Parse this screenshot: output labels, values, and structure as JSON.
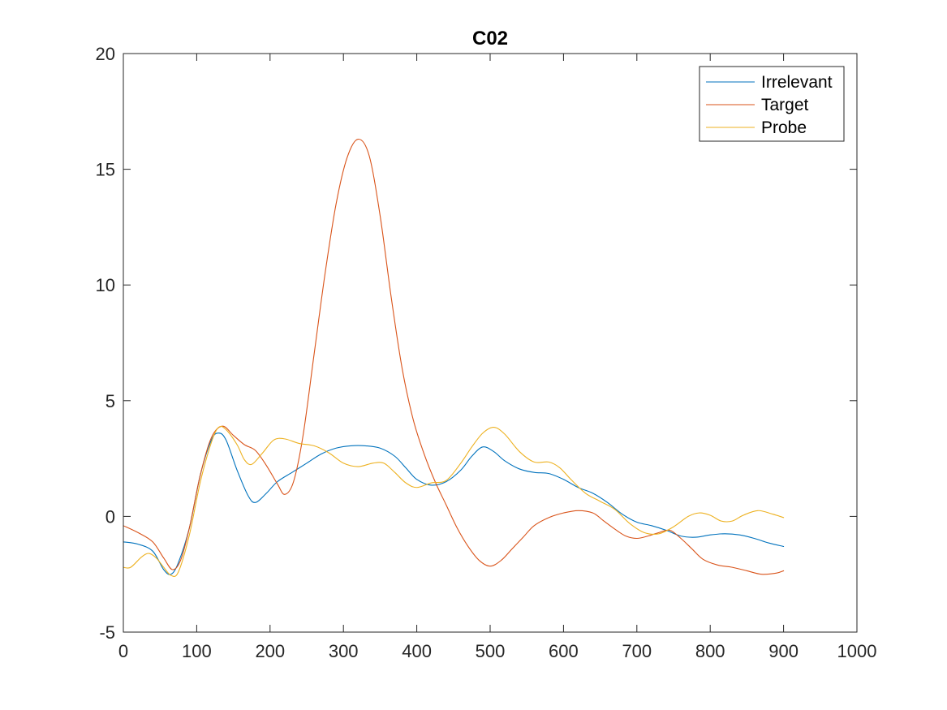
{
  "chart_data": {
    "type": "line",
    "title": "C02",
    "xlabel": "",
    "ylabel": "",
    "xlim": [
      0,
      1000
    ],
    "ylim": [
      -5,
      20
    ],
    "xticks": [
      0,
      100,
      200,
      300,
      400,
      500,
      600,
      700,
      800,
      900,
      1000
    ],
    "yticks": [
      -5,
      0,
      5,
      10,
      15,
      20
    ],
    "grid": false,
    "legend_position": "top-right",
    "series": [
      {
        "name": "Irrelevant",
        "color": "#0072BD",
        "points": [
          [
            0,
            -1.1
          ],
          [
            20,
            -1.2
          ],
          [
            40,
            -1.5
          ],
          [
            55,
            -2.3
          ],
          [
            65,
            -2.5
          ],
          [
            75,
            -2.0
          ],
          [
            90,
            -0.5
          ],
          [
            105,
            1.8
          ],
          [
            120,
            3.3
          ],
          [
            130,
            3.6
          ],
          [
            140,
            3.3
          ],
          [
            155,
            2.0
          ],
          [
            170,
            0.9
          ],
          [
            180,
            0.6
          ],
          [
            195,
            1.0
          ],
          [
            210,
            1.5
          ],
          [
            230,
            1.9
          ],
          [
            250,
            2.3
          ],
          [
            270,
            2.7
          ],
          [
            290,
            2.95
          ],
          [
            310,
            3.05
          ],
          [
            330,
            3.05
          ],
          [
            350,
            2.95
          ],
          [
            370,
            2.6
          ],
          [
            385,
            2.1
          ],
          [
            400,
            1.6
          ],
          [
            420,
            1.35
          ],
          [
            440,
            1.5
          ],
          [
            460,
            2.0
          ],
          [
            475,
            2.6
          ],
          [
            490,
            3.0
          ],
          [
            505,
            2.8
          ],
          [
            520,
            2.4
          ],
          [
            540,
            2.05
          ],
          [
            560,
            1.9
          ],
          [
            580,
            1.85
          ],
          [
            600,
            1.6
          ],
          [
            620,
            1.25
          ],
          [
            640,
            1.0
          ],
          [
            660,
            0.6
          ],
          [
            680,
            0.1
          ],
          [
            700,
            -0.25
          ],
          [
            720,
            -0.4
          ],
          [
            740,
            -0.6
          ],
          [
            760,
            -0.85
          ],
          [
            780,
            -0.9
          ],
          [
            800,
            -0.8
          ],
          [
            820,
            -0.75
          ],
          [
            840,
            -0.8
          ],
          [
            860,
            -0.95
          ],
          [
            880,
            -1.15
          ],
          [
            900,
            -1.3
          ]
        ]
      },
      {
        "name": "Target",
        "color": "#D95319",
        "points": [
          [
            0,
            -0.4
          ],
          [
            20,
            -0.7
          ],
          [
            40,
            -1.1
          ],
          [
            55,
            -1.8
          ],
          [
            67,
            -2.3
          ],
          [
            78,
            -1.9
          ],
          [
            90,
            -0.5
          ],
          [
            105,
            1.8
          ],
          [
            120,
            3.4
          ],
          [
            135,
            3.9
          ],
          [
            150,
            3.5
          ],
          [
            165,
            3.1
          ],
          [
            180,
            2.85
          ],
          [
            195,
            2.2
          ],
          [
            210,
            1.4
          ],
          [
            220,
            0.95
          ],
          [
            232,
            1.5
          ],
          [
            245,
            3.5
          ],
          [
            260,
            7.0
          ],
          [
            275,
            10.5
          ],
          [
            290,
            13.5
          ],
          [
            305,
            15.5
          ],
          [
            320,
            16.3
          ],
          [
            335,
            15.6
          ],
          [
            350,
            13.0
          ],
          [
            365,
            9.5
          ],
          [
            380,
            6.4
          ],
          [
            395,
            4.2
          ],
          [
            410,
            2.7
          ],
          [
            425,
            1.5
          ],
          [
            440,
            0.5
          ],
          [
            455,
            -0.5
          ],
          [
            470,
            -1.3
          ],
          [
            485,
            -1.9
          ],
          [
            500,
            -2.15
          ],
          [
            515,
            -1.9
          ],
          [
            530,
            -1.4
          ],
          [
            545,
            -0.9
          ],
          [
            560,
            -0.4
          ],
          [
            580,
            -0.05
          ],
          [
            600,
            0.15
          ],
          [
            620,
            0.25
          ],
          [
            640,
            0.15
          ],
          [
            655,
            -0.2
          ],
          [
            670,
            -0.55
          ],
          [
            685,
            -0.85
          ],
          [
            700,
            -0.95
          ],
          [
            715,
            -0.85
          ],
          [
            730,
            -0.7
          ],
          [
            745,
            -0.6
          ],
          [
            760,
            -0.95
          ],
          [
            775,
            -1.4
          ],
          [
            790,
            -1.85
          ],
          [
            810,
            -2.1
          ],
          [
            830,
            -2.2
          ],
          [
            850,
            -2.35
          ],
          [
            870,
            -2.5
          ],
          [
            890,
            -2.45
          ],
          [
            900,
            -2.35
          ]
        ]
      },
      {
        "name": "Probe",
        "color": "#EDB120",
        "points": [
          [
            0,
            -2.2
          ],
          [
            10,
            -2.2
          ],
          [
            25,
            -1.75
          ],
          [
            35,
            -1.6
          ],
          [
            45,
            -1.8
          ],
          [
            55,
            -2.2
          ],
          [
            65,
            -2.55
          ],
          [
            75,
            -2.4
          ],
          [
            90,
            -0.8
          ],
          [
            105,
            1.5
          ],
          [
            120,
            3.2
          ],
          [
            130,
            3.85
          ],
          [
            140,
            3.75
          ],
          [
            155,
            3.1
          ],
          [
            165,
            2.45
          ],
          [
            175,
            2.25
          ],
          [
            190,
            2.75
          ],
          [
            205,
            3.3
          ],
          [
            220,
            3.35
          ],
          [
            240,
            3.15
          ],
          [
            260,
            3.05
          ],
          [
            280,
            2.75
          ],
          [
            300,
            2.3
          ],
          [
            320,
            2.15
          ],
          [
            340,
            2.3
          ],
          [
            355,
            2.3
          ],
          [
            370,
            1.9
          ],
          [
            385,
            1.45
          ],
          [
            400,
            1.25
          ],
          [
            420,
            1.45
          ],
          [
            440,
            1.55
          ],
          [
            460,
            2.3
          ],
          [
            475,
            3.0
          ],
          [
            490,
            3.6
          ],
          [
            505,
            3.85
          ],
          [
            520,
            3.55
          ],
          [
            540,
            2.8
          ],
          [
            560,
            2.35
          ],
          [
            580,
            2.35
          ],
          [
            595,
            2.1
          ],
          [
            610,
            1.6
          ],
          [
            630,
            1.0
          ],
          [
            650,
            0.65
          ],
          [
            670,
            0.3
          ],
          [
            690,
            -0.3
          ],
          [
            710,
            -0.7
          ],
          [
            730,
            -0.75
          ],
          [
            750,
            -0.45
          ],
          [
            770,
            0.0
          ],
          [
            785,
            0.15
          ],
          [
            800,
            0.05
          ],
          [
            815,
            -0.2
          ],
          [
            830,
            -0.2
          ],
          [
            845,
            0.05
          ],
          [
            865,
            0.25
          ],
          [
            885,
            0.1
          ],
          [
            900,
            -0.05
          ]
        ]
      }
    ]
  }
}
